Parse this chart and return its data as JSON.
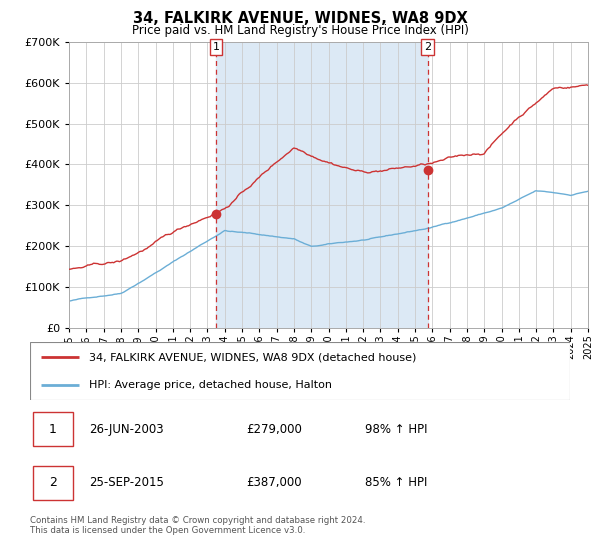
{
  "title": "34, FALKIRK AVENUE, WIDNES, WA8 9DX",
  "subtitle": "Price paid vs. HM Land Registry's House Price Index (HPI)",
  "legend_line1": "34, FALKIRK AVENUE, WIDNES, WA8 9DX (detached house)",
  "legend_line2": "HPI: Average price, detached house, Halton",
  "annotation1_label": "1",
  "annotation1_date": "26-JUN-2003",
  "annotation1_price": "£279,000",
  "annotation1_hpi": "98% ↑ HPI",
  "annotation2_label": "2",
  "annotation2_date": "25-SEP-2015",
  "annotation2_price": "£387,000",
  "annotation2_hpi": "85% ↑ HPI",
  "footnote1": "Contains HM Land Registry data © Crown copyright and database right 2024.",
  "footnote2": "This data is licensed under the Open Government Licence v3.0.",
  "sale1_year": 2003.49,
  "sale1_value": 279000,
  "sale2_year": 2015.73,
  "sale2_value": 387000,
  "red_color": "#cc3333",
  "blue_color": "#6baed6",
  "bg_shaded": "#dce9f5",
  "grid_color": "#cccccc",
  "vline_color": "#cc3333",
  "ylim": [
    0,
    700000
  ],
  "xlim_start": 1995,
  "xlim_end": 2025
}
